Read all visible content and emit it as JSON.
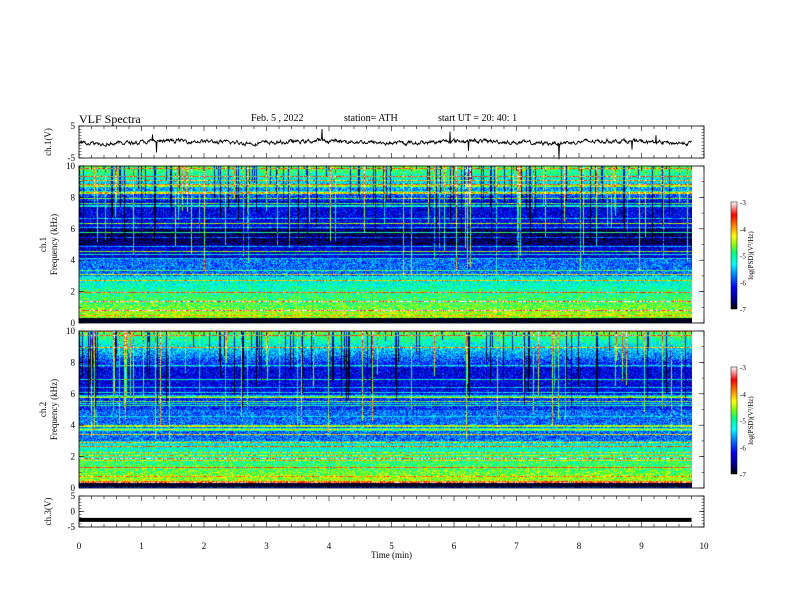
{
  "header": {
    "title": "VLF  Spectra",
    "date": "Feb. 5  , 2022",
    "station": "station= ATH",
    "start": "start  UT  =   20: 40: 1"
  },
  "chart_data": [
    {
      "type": "line",
      "name": "ch1-timeseries",
      "ylabel": "ch.1(V)",
      "ylim": [
        -5,
        5
      ],
      "yticks": [
        "5",
        "-5"
      ],
      "xlim": [
        0,
        10
      ],
      "baseline": 0
    },
    {
      "type": "heatmap",
      "name": "ch1-spectrogram",
      "ylabel": "ch.1\nFrequency (kHz)",
      "ylim": [
        0,
        10
      ],
      "yticks": [
        "0",
        "2",
        "4",
        "6",
        "8",
        "10"
      ],
      "xlim": [
        0,
        10
      ],
      "data_extent_x": [
        0,
        9.8
      ],
      "colorbar": {
        "label": "log(PSD)(V²/Hz)",
        "range": [
          -7,
          -3
        ],
        "ticks": [
          "-3",
          "-4",
          "-5",
          "-6",
          "-7"
        ]
      }
    },
    {
      "type": "heatmap",
      "name": "ch2-spectrogram",
      "ylabel": "ch.2\nFrequency (kHz)",
      "ylim": [
        0,
        10
      ],
      "yticks": [
        "0",
        "2",
        "4",
        "6",
        "8",
        "10"
      ],
      "xlim": [
        0,
        10
      ],
      "data_extent_x": [
        0,
        9.8
      ],
      "colorbar": {
        "label": "log(PSD)(V²/Hz)",
        "range": [
          -7,
          -3
        ],
        "ticks": [
          "-3",
          "-4",
          "-5",
          "-6",
          "-7"
        ]
      }
    },
    {
      "type": "line",
      "name": "ch3-timeseries",
      "ylabel": "ch.3(V)",
      "ylim": [
        -5,
        5
      ],
      "yticks": [
        "5",
        "0",
        "-5"
      ],
      "xlim": [
        0,
        10
      ],
      "constant_value": -2.7
    }
  ],
  "x_axis": {
    "label": "Time  (min)",
    "ticks": [
      "0",
      "1",
      "2",
      "3",
      "4",
      "5",
      "6",
      "7",
      "8",
      "9",
      "10"
    ]
  },
  "colors": {
    "colormap": [
      "#000000",
      "#000080",
      "#0000ff",
      "#0080ff",
      "#00ffff",
      "#00ff80",
      "#80ff00",
      "#ffff00",
      "#ff8000",
      "#ff0000",
      "#ffffff"
    ]
  }
}
